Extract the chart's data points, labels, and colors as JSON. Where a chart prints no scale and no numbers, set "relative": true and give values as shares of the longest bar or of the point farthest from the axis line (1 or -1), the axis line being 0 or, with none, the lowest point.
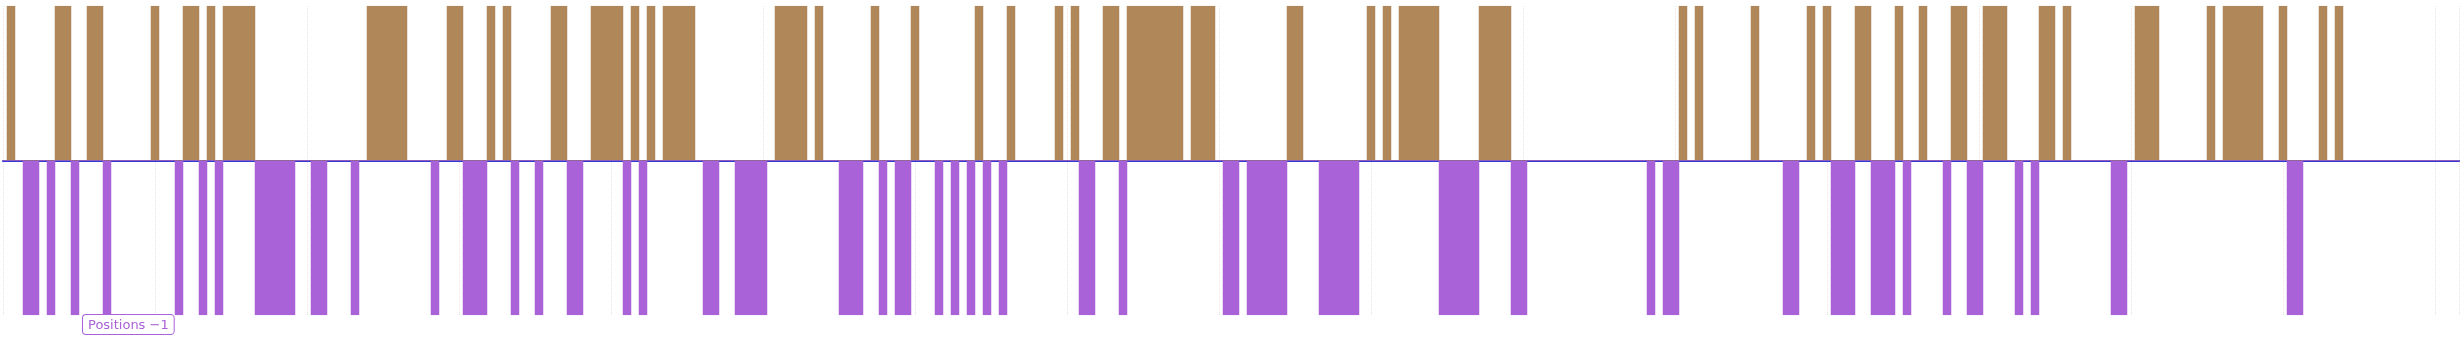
{
  "chart_data": {
    "type": "area",
    "relative": true,
    "grid": "x",
    "annotations": [
      "Positions −1"
    ],
    "categories": [
      null,
      null,
      null,
      null,
      null,
      null,
      null,
      null,
      null,
      null,
      null,
      null,
      null,
      null,
      null,
      null,
      null,
      null,
      null,
      null,
      null,
      null,
      null,
      null,
      null,
      null,
      null,
      null,
      null,
      null,
      null,
      null,
      null,
      null,
      null,
      null,
      null,
      null,
      null,
      null,
      null,
      null,
      null,
      null,
      null,
      null,
      null,
      null,
      null,
      null,
      null,
      null,
      null,
      null,
      null,
      null,
      null,
      null,
      null,
      null,
      null,
      null,
      null,
      null,
      null,
      null,
      null,
      null,
      null,
      null,
      null,
      null,
      null,
      null,
      null,
      null,
      null,
      null,
      null,
      null,
      null,
      null,
      null,
      null,
      null,
      null,
      null,
      null,
      null,
      null,
      null,
      null,
      null,
      null,
      null,
      null,
      null,
      null,
      null,
      null,
      null,
      null,
      null,
      null,
      null,
      null,
      null,
      null,
      null,
      null,
      null,
      null,
      null,
      null,
      null,
      null,
      null,
      null,
      null,
      null,
      null,
      null,
      null,
      null,
      null,
      null,
      null,
      null,
      null,
      null,
      null,
      null,
      null,
      null,
      null,
      null,
      null,
      null,
      null,
      null,
      null,
      null,
      null,
      null,
      null,
      null,
      null,
      null,
      null,
      null,
      null,
      null,
      null,
      null,
      null,
      null,
      null,
      null,
      null,
      null,
      null,
      null,
      null,
      null,
      null,
      null,
      null,
      null,
      null,
      null,
      null,
      null,
      null,
      null,
      null,
      null,
      null,
      null,
      null,
      null,
      null,
      null,
      null,
      null,
      null,
      null,
      null,
      null,
      null,
      null,
      null,
      null,
      null,
      null,
      null,
      null,
      null,
      null,
      null,
      null,
      null,
      null,
      null,
      null,
      null,
      null,
      null,
      null,
      null,
      null,
      null,
      null,
      null,
      null,
      null,
      null,
      null,
      null,
      null,
      null,
      null,
      null,
      null,
      null,
      null,
      null,
      null,
      null,
      null,
      null,
      null,
      null,
      null,
      null,
      null,
      null,
      null,
      null,
      null,
      null,
      null,
      null,
      null,
      null,
      null,
      null,
      null,
      null,
      null,
      null,
      null,
      null,
      null,
      null,
      null,
      null,
      null,
      null,
      null,
      null,
      null,
      null,
      null,
      null,
      null,
      null,
      null,
      null,
      null,
      null,
      null,
      null,
      null,
      null,
      null,
      null,
      null,
      null,
      null,
      null,
      null,
      null,
      null,
      null,
      null,
      null,
      null,
      null,
      null,
      null,
      null,
      null,
      null,
      null,
      null,
      null,
      null,
      null,
      null,
      null,
      null,
      null,
      null,
      null,
      null,
      null,
      null,
      null
    ],
    "series": [
      {
        "color": "#b08759",
        "values": [
          0,
          1,
          0,
          0,
          0,
          0,
          0,
          1,
          1,
          0,
          0,
          1,
          1,
          0,
          0,
          0,
          0,
          0,
          0,
          1,
          0,
          0,
          0,
          1,
          1,
          0,
          1,
          0,
          1,
          1,
          1,
          1,
          0,
          0,
          0,
          0,
          0,
          0,
          0,
          0,
          0,
          0,
          0,
          0,
          0,
          0,
          1,
          1,
          1,
          1,
          1,
          0,
          0,
          0,
          0,
          0,
          1,
          1,
          0,
          0,
          0,
          1,
          0,
          1,
          0,
          0,
          0,
          0,
          0,
          1,
          1,
          0,
          0,
          0,
          1,
          1,
          1,
          1,
          0,
          1,
          0,
          1,
          0,
          1,
          1,
          1,
          1,
          0,
          0,
          0,
          0,
          0,
          0,
          0,
          0,
          0,
          0,
          1,
          1,
          1,
          1,
          0,
          1,
          0,
          0,
          0,
          0,
          0,
          0,
          1,
          0,
          0,
          0,
          0,
          1,
          0,
          0,
          0,
          0,
          0,
          0,
          0,
          1,
          0,
          0,
          0,
          1,
          0,
          0,
          0,
          0,
          0,
          1,
          0,
          1,
          0,
          0,
          0,
          1,
          1,
          0,
          1,
          1,
          1,
          1,
          1,
          1,
          1,
          0,
          1,
          1,
          1,
          0,
          0,
          0,
          0,
          0,
          0,
          0,
          0,
          0,
          1,
          1,
          0,
          0,
          0,
          0,
          0,
          0,
          0,
          0,
          1,
          0,
          1,
          0,
          1,
          1,
          1,
          1,
          1,
          0,
          0,
          0,
          0,
          0,
          1,
          1,
          1,
          1,
          0,
          0,
          0,
          0,
          0,
          0,
          0,
          0,
          0,
          0,
          0,
          0,
          0,
          0,
          0,
          0,
          0,
          0,
          0,
          0,
          0,
          1,
          0,
          1,
          0,
          0,
          0,
          0,
          0,
          0,
          1,
          0,
          0,
          0,
          0,
          0,
          0,
          1,
          0,
          1,
          0,
          0,
          0,
          1,
          1,
          0,
          0,
          0,
          1,
          0,
          0,
          1,
          0,
          0,
          0,
          1,
          1,
          0,
          0,
          1,
          1,
          1,
          0,
          0,
          0,
          0,
          1,
          1,
          0,
          1,
          0,
          0,
          0,
          0,
          0,
          0,
          0,
          0,
          1,
          1,
          1,
          0,
          0,
          0,
          0,
          0,
          0,
          1,
          0,
          1,
          1,
          1,
          1,
          1,
          0,
          0,
          1,
          0,
          0,
          0,
          0,
          1,
          0,
          1,
          0,
          0,
          0,
          0,
          0,
          0,
          0,
          0,
          0,
          0,
          0,
          0,
          0,
          0,
          0
        ]
      },
      {
        "color": "#a962d7",
        "values": [
          0,
          0,
          0,
          -1,
          -1,
          0,
          -1,
          0,
          0,
          -1,
          0,
          0,
          0,
          -1,
          0,
          0,
          0,
          0,
          0,
          0,
          0,
          0,
          -1,
          0,
          0,
          -1,
          0,
          -1,
          0,
          0,
          0,
          0,
          -1,
          -1,
          -1,
          -1,
          -1,
          0,
          0,
          -1,
          -1,
          0,
          0,
          0,
          -1,
          0,
          0,
          0,
          0,
          0,
          0,
          0,
          0,
          0,
          -1,
          0,
          0,
          0,
          -1,
          -1,
          -1,
          0,
          0,
          0,
          -1,
          0,
          0,
          -1,
          0,
          0,
          0,
          -1,
          -1,
          0,
          0,
          0,
          0,
          0,
          -1,
          0,
          -1,
          0,
          0,
          0,
          0,
          0,
          0,
          0,
          -1,
          -1,
          0,
          0,
          -1,
          -1,
          -1,
          -1,
          0,
          0,
          0,
          0,
          0,
          0,
          0,
          0,
          0,
          -1,
          -1,
          -1,
          0,
          0,
          -1,
          0,
          -1,
          -1,
          0,
          0,
          0,
          -1,
          0,
          -1,
          0,
          -1,
          0,
          -1,
          0,
          -1,
          0,
          0,
          0,
          0,
          0,
          0,
          0,
          0,
          0,
          -1,
          -1,
          0,
          0,
          0,
          -1,
          0,
          0,
          0,
          0,
          0,
          0,
          0,
          0,
          0,
          0,
          0,
          0,
          -1,
          -1,
          0,
          -1,
          -1,
          -1,
          -1,
          -1,
          0,
          0,
          0,
          0,
          -1,
          -1,
          -1,
          -1,
          -1,
          0,
          0,
          0,
          0,
          0,
          0,
          0,
          0,
          0,
          0,
          -1,
          -1,
          -1,
          -1,
          -1,
          0,
          0,
          0,
          0,
          -1,
          -1,
          0,
          0,
          0,
          0,
          0,
          0,
          0,
          0,
          0,
          0,
          0,
          0,
          0,
          0,
          0,
          -1,
          0,
          -1,
          -1,
          0,
          0,
          0,
          0,
          0,
          0,
          0,
          0,
          0,
          0,
          0,
          0,
          0,
          -1,
          -1,
          0,
          0,
          0,
          0,
          -1,
          -1,
          -1,
          0,
          0,
          -1,
          -1,
          -1,
          0,
          -1,
          0,
          0,
          0,
          0,
          -1,
          0,
          0,
          -1,
          -1,
          0,
          0,
          0,
          0,
          -1,
          0,
          -1,
          0,
          0,
          0,
          0,
          0,
          0,
          0,
          0,
          0,
          -1,
          -1,
          0,
          0,
          0,
          0,
          0,
          0,
          0,
          0,
          0,
          0,
          0,
          0,
          0,
          0,
          0,
          0,
          0,
          0,
          0,
          0,
          -1,
          -1,
          0,
          0,
          0,
          0,
          0,
          0,
          0,
          0,
          0,
          0,
          0,
          0,
          0,
          0,
          0,
          0,
          0,
          0,
          0,
          0
        ]
      }
    ]
  }
}
